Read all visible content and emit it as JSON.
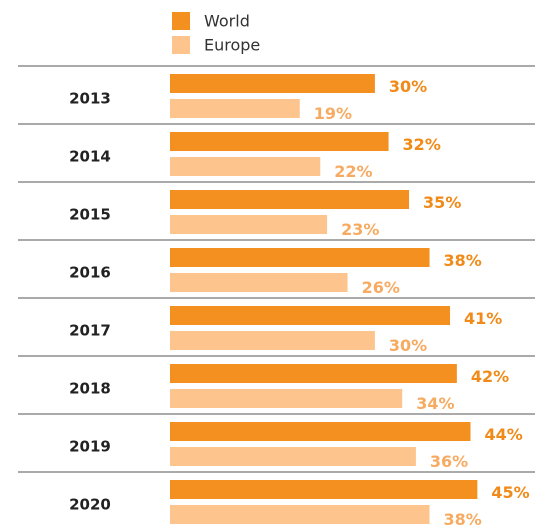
{
  "chart_data": {
    "type": "hbar",
    "categories": [
      "2013",
      "2014",
      "2015",
      "2016",
      "2017",
      "2018",
      "2019",
      "2020"
    ],
    "series": [
      {
        "name": "World",
        "color": "#f39020",
        "values": [
          30,
          32,
          35,
          38,
          41,
          42,
          44,
          45
        ],
        "value_labels": [
          "30%",
          "32%",
          "35%",
          "38%",
          "41%",
          "42%",
          "44%",
          "45%"
        ]
      },
      {
        "name": "Europe",
        "color": "#fdc48d",
        "values": [
          19,
          22,
          23,
          26,
          30,
          34,
          36,
          38
        ],
        "value_labels": [
          "19%",
          "22%",
          "23%",
          "26%",
          "30%",
          "34%",
          "36%",
          "38%"
        ]
      }
    ]
  }
}
